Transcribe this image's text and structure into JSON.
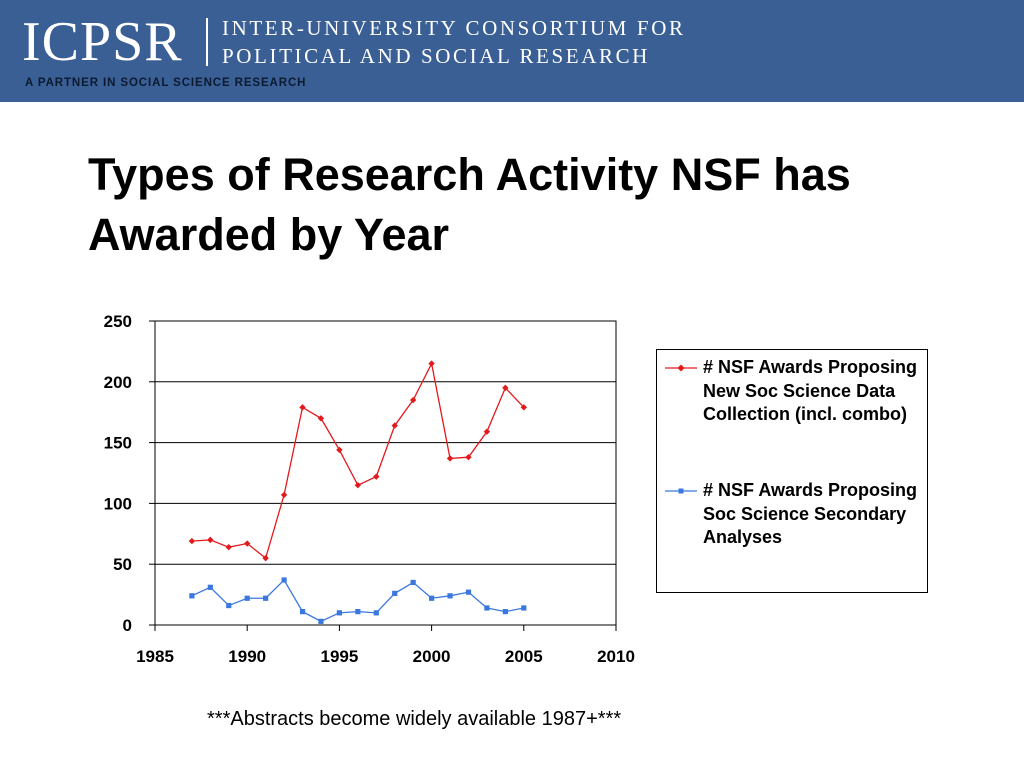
{
  "header": {
    "logo": "ICPSR",
    "org_line1": "INTER-UNIVERSITY CONSORTIUM FOR",
    "org_line2": "POLITICAL AND SOCIAL RESEARCH",
    "tagline": "A PARTNER IN SOCIAL SCIENCE RESEARCH",
    "banner_color": "#3a5f95"
  },
  "slide": {
    "title": "Types of Research Activity NSF has Awarded by Year",
    "footnote": "***Abstracts become widely available 1987+***"
  },
  "chart_data": {
    "type": "line",
    "title": "",
    "xlabel": "",
    "ylabel": "",
    "xlim": [
      1985,
      2010
    ],
    "ylim": [
      0,
      250
    ],
    "x_ticks": [
      "1985",
      "1990",
      "1995",
      "2000",
      "2005",
      "2010"
    ],
    "y_ticks": [
      "0",
      "50",
      "100",
      "150",
      "200",
      "250"
    ],
    "grid": "horizontal",
    "legend_position": "right",
    "x": [
      1987,
      1988,
      1989,
      1990,
      1991,
      1992,
      1993,
      1994,
      1995,
      1996,
      1997,
      1998,
      1999,
      2000,
      2001,
      2002,
      2003,
      2004,
      2005
    ],
    "series": [
      {
        "name": "# NSF Awards Proposing New Soc Science Data Collection (incl. combo)",
        "color": "#e31a1c",
        "marker": "diamond",
        "values": [
          69,
          70,
          64,
          67,
          55,
          107,
          179,
          170,
          144,
          115,
          122,
          164,
          185,
          215,
          137,
          138,
          159,
          195,
          179
        ]
      },
      {
        "name": "# NSF Awards Proposing Soc Science Secondary Analyses",
        "color": "#3a78e0",
        "marker": "square",
        "values": [
          24,
          31,
          16,
          22,
          22,
          37,
          11,
          3,
          10,
          11,
          10,
          26,
          35,
          22,
          24,
          27,
          14,
          11,
          14
        ]
      }
    ]
  }
}
